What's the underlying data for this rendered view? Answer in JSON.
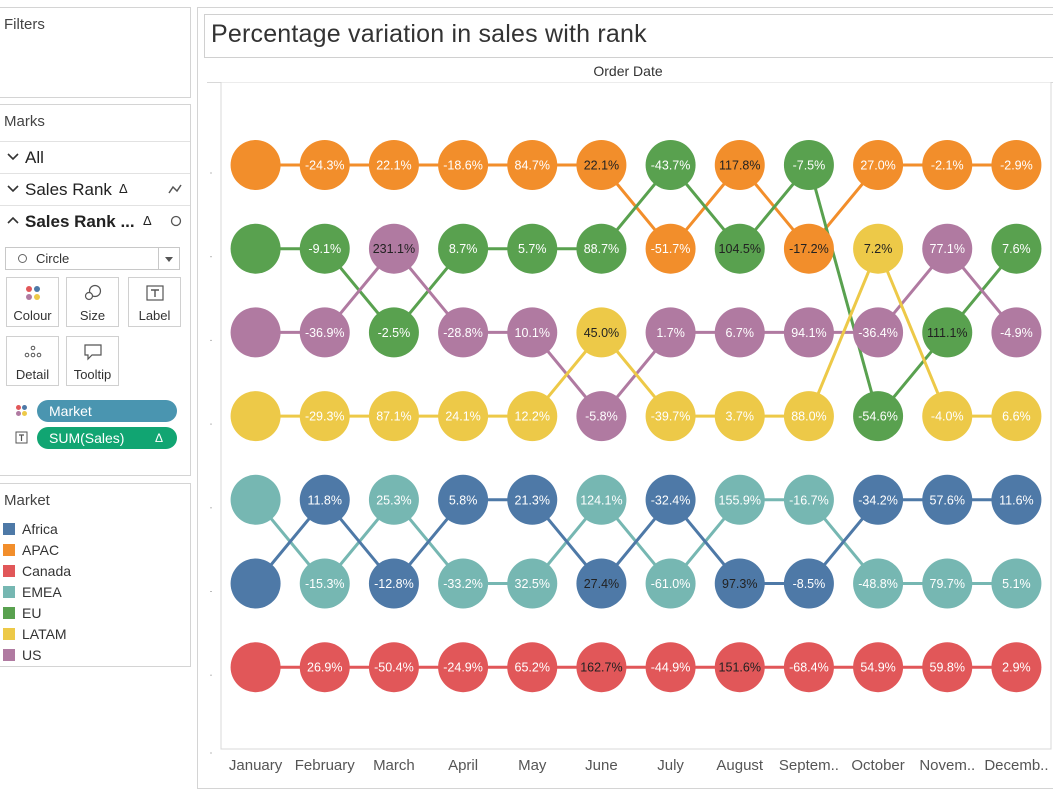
{
  "filters": {
    "title": "Filters"
  },
  "marks": {
    "title": "Marks",
    "rows": [
      {
        "label": "All"
      },
      {
        "label": "Sales Rank",
        "delta": "Δ",
        "icon": "line-chart-icon"
      },
      {
        "label": "Sales Rank ...",
        "delta": "Δ",
        "icon": "circle-outline-icon"
      }
    ],
    "mark_type": "Circle",
    "tiles": [
      "Colour",
      "Size",
      "Label",
      "Detail",
      "Tooltip"
    ],
    "pills": [
      {
        "label": "Market",
        "color": "#4a95b0"
      },
      {
        "label": "SUM(Sales)",
        "delta": "Δ",
        "color": "#11a572"
      }
    ]
  },
  "legend": {
    "title": "Market",
    "items": [
      {
        "label": "Africa",
        "color": "#4e79a7"
      },
      {
        "label": "APAC",
        "color": "#f28e2b"
      },
      {
        "label": "Canada",
        "color": "#e15759"
      },
      {
        "label": "EMEA",
        "color": "#76b7b2"
      },
      {
        "label": "EU",
        "color": "#59a14f"
      },
      {
        "label": "LATAM",
        "color": "#edc948"
      },
      {
        "label": "US",
        "color": "#b07aa1"
      }
    ]
  },
  "view": {
    "title": "Percentage variation in sales with rank",
    "column_header": "Order Date"
  },
  "chart_data": {
    "type": "scatter",
    "subtype": "bump chart",
    "x_categories": [
      "January",
      "February",
      "March",
      "April",
      "May",
      "June",
      "July",
      "August",
      "Septem..",
      "October",
      "Novem..",
      "Decemb.."
    ],
    "y_axis": "Sales Rank (rank 1 at top)",
    "series": [
      {
        "name": "APAC",
        "color": "#f28e2b",
        "ranks": [
          1,
          1,
          1,
          1,
          1,
          1,
          2,
          1,
          2,
          1,
          1,
          1
        ],
        "labels": [
          "",
          "-24.3%",
          "22.1%",
          "-18.6%",
          "84.7%",
          "22.1%",
          "-51.7%",
          "117.8%",
          "-17.2%",
          "27.0%",
          "-2.1%",
          "-2.9%"
        ]
      },
      {
        "name": "EU",
        "color": "#59a14f",
        "ranks": [
          2,
          2,
          3,
          2,
          2,
          2,
          1,
          2,
          1,
          4,
          3,
          2
        ],
        "labels": [
          "",
          "-9.1%",
          "-2.5%",
          "8.7%",
          "5.7%",
          "88.7%",
          "-43.7%",
          "104.5%",
          "-7.5%",
          "-54.6%",
          "111.1%",
          "7.6%"
        ]
      },
      {
        "name": "US",
        "color": "#b07aa1",
        "ranks": [
          3,
          3,
          2,
          3,
          3,
          4,
          3,
          3,
          3,
          3,
          2,
          3
        ],
        "labels": [
          "",
          "-36.9%",
          "231.1%",
          "-28.8%",
          "10.1%",
          "-5.8%",
          "1.7%",
          "6.7%",
          "94.1%",
          "-36.4%",
          "77.1%",
          "-4.9%"
        ]
      },
      {
        "name": "LATAM",
        "color": "#edc948",
        "ranks": [
          4,
          4,
          4,
          4,
          4,
          3,
          4,
          4,
          4,
          2,
          4,
          4
        ],
        "labels": [
          "",
          "-29.3%",
          "87.1%",
          "24.1%",
          "12.2%",
          "45.0%",
          "-39.7%",
          "3.7%",
          "88.0%",
          "7.2%",
          "-4.0%",
          "6.6%"
        ]
      },
      {
        "name": "EMEA",
        "color": "#76b7b2",
        "ranks": [
          5,
          6,
          5,
          6,
          6,
          5,
          6,
          5,
          5,
          6,
          6,
          6
        ],
        "labels": [
          "",
          "-15.3%",
          "25.3%",
          "-33.2%",
          "32.5%",
          "124.1%",
          "-61.0%",
          "155.9%",
          "-16.7%",
          "-48.8%",
          "79.7%",
          "5.1%"
        ]
      },
      {
        "name": "Africa",
        "color": "#4e79a7",
        "ranks": [
          6,
          5,
          6,
          5,
          5,
          6,
          5,
          6,
          6,
          5,
          5,
          5
        ],
        "labels": [
          "",
          "11.8%",
          "-12.8%",
          "5.8%",
          "21.3%",
          "27.4%",
          "-32.4%",
          "97.3%",
          "-8.5%",
          "-34.2%",
          "57.6%",
          "11.6%"
        ]
      },
      {
        "name": "Canada",
        "color": "#e15759",
        "ranks": [
          7,
          7,
          7,
          7,
          7,
          7,
          7,
          7,
          7,
          7,
          7,
          7
        ],
        "labels": [
          "",
          "26.9%",
          "-50.4%",
          "-24.9%",
          "65.2%",
          "162.7%",
          "-44.9%",
          "151.6%",
          "-68.4%",
          "54.9%",
          "59.8%",
          "2.9%"
        ]
      },
      {
        "name": "Sales Rank",
        "ranks": [],
        "labels": []
      }
    ],
    "dark_label_cells": [
      [
        "US",
        "March"
      ],
      [
        "APAC",
        "June"
      ],
      [
        "APAC",
        "August"
      ],
      [
        "EU",
        "August"
      ],
      [
        "APAC",
        "Septem.."
      ],
      [
        "EU",
        "November"
      ],
      [
        "LATAM",
        "October"
      ],
      [
        "LATAM",
        "June"
      ],
      [
        "Africa",
        "June"
      ],
      [
        "Africa",
        "August"
      ],
      [
        "Canada",
        "June"
      ],
      [
        "Canada",
        "August"
      ]
    ],
    "grid": false,
    "legend": "separate card (left pane)"
  }
}
